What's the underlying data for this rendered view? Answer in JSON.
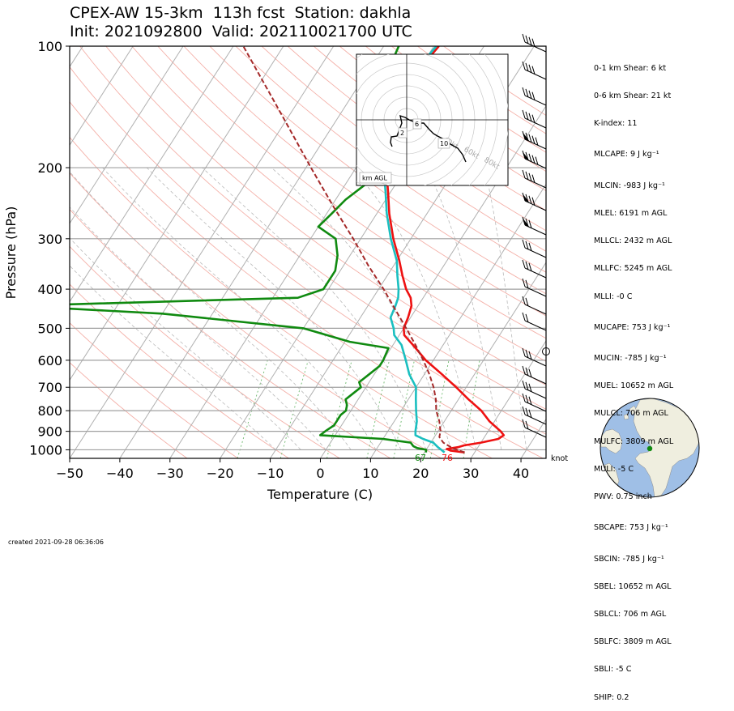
{
  "title_line1": "CPEX-AW 15-3km  113h fcst  Station: dakhla",
  "title_line2": "Init: 2021092800  Valid: 202110021700 UTC",
  "chart_data": {
    "type": "skew-t log-p",
    "xlabel": "Temperature (C)",
    "ylabel": "Pressure (hPa)",
    "xlim": [
      -50,
      45
    ],
    "ylim": [
      1050,
      100
    ],
    "y_log": true,
    "grid": true,
    "x_ticks": [
      -50,
      -40,
      -30,
      -20,
      -10,
      0,
      10,
      20,
      30,
      40
    ],
    "y_ticks": [
      100,
      200,
      300,
      400,
      500,
      600,
      700,
      800,
      900,
      1000
    ],
    "surface_dewpoint_label": "67",
    "surface_temperature_label": "76",
    "wind_units_label": "knot",
    "series": [
      {
        "color": "#ee1111",
        "points": [
          [
            1015,
            28
          ],
          [
            1005,
            25
          ],
          [
            995,
            24
          ],
          [
            985,
            26
          ],
          [
            975,
            27
          ],
          [
            960,
            30
          ],
          [
            940,
            33
          ],
          [
            920,
            33.6
          ],
          [
            900,
            32.5
          ],
          [
            850,
            29
          ],
          [
            800,
            26
          ],
          [
            750,
            22
          ],
          [
            700,
            18
          ],
          [
            650,
            13.5
          ],
          [
            600,
            8.5
          ],
          [
            550,
            4
          ],
          [
            520,
            1
          ],
          [
            500,
            0
          ],
          [
            470,
            -0.5
          ],
          [
            440,
            -1.3
          ],
          [
            420,
            -2.5
          ],
          [
            400,
            -4.5
          ],
          [
            370,
            -7
          ],
          [
            340,
            -9.5
          ],
          [
            300,
            -13.5
          ],
          [
            260,
            -17.5
          ],
          [
            230,
            -20.5
          ],
          [
            200,
            -24
          ],
          [
            180,
            -27
          ],
          [
            165,
            -29
          ],
          [
            155,
            -31
          ],
          [
            145,
            -31.5
          ],
          [
            130,
            -31
          ],
          [
            115,
            -30
          ],
          [
            100,
            -29
          ]
        ]
      },
      {
        "color": "#1bbfc0",
        "points": [
          [
            1015,
            24
          ],
          [
            1000,
            23
          ],
          [
            985,
            22
          ],
          [
            960,
            20.5
          ],
          [
            940,
            18
          ],
          [
            920,
            16
          ],
          [
            900,
            15.5
          ],
          [
            850,
            14.5
          ],
          [
            800,
            13
          ],
          [
            750,
            11.5
          ],
          [
            700,
            10
          ],
          [
            650,
            7
          ],
          [
            600,
            4.5
          ],
          [
            550,
            1.7
          ],
          [
            520,
            -1
          ],
          [
            500,
            -2
          ],
          [
            470,
            -4
          ],
          [
            440,
            -4.5
          ],
          [
            420,
            -5
          ],
          [
            400,
            -6
          ],
          [
            370,
            -8
          ],
          [
            340,
            -10
          ],
          [
            300,
            -14
          ],
          [
            260,
            -18
          ],
          [
            230,
            -21
          ],
          [
            200,
            -24.5
          ],
          [
            180,
            -27.5
          ],
          [
            160,
            -30
          ],
          [
            145,
            -31.5
          ],
          [
            130,
            -31.5
          ],
          [
            115,
            -30.5
          ],
          [
            100,
            -29.5
          ]
        ]
      },
      {
        "color": "#108a10",
        "points": [
          [
            1015,
            20.3
          ],
          [
            1000,
            20
          ],
          [
            990,
            18
          ],
          [
            980,
            17
          ],
          [
            960,
            16
          ],
          [
            940,
            10
          ],
          [
            920,
            -3
          ],
          [
            900,
            -2.5
          ],
          [
            870,
            -1.5
          ],
          [
            850,
            -1.5
          ],
          [
            820,
            -1.5
          ],
          [
            800,
            -1
          ],
          [
            775,
            -1.5
          ],
          [
            750,
            -2.5
          ],
          [
            700,
            -1
          ],
          [
            680,
            -2
          ],
          [
            650,
            -1
          ],
          [
            620,
            0
          ],
          [
            600,
            0
          ],
          [
            560,
            -0.5
          ],
          [
            540,
            -9
          ],
          [
            500,
            -20
          ],
          [
            460,
            -50
          ],
          [
            440,
            -80
          ],
          [
            420,
            -25
          ],
          [
            400,
            -21
          ],
          [
            360,
            -21
          ],
          [
            330,
            -22.5
          ],
          [
            300,
            -25
          ],
          [
            280,
            -30
          ],
          [
            260,
            -29
          ],
          [
            240,
            -28
          ],
          [
            220,
            -26
          ],
          [
            200,
            -28
          ],
          [
            180,
            -30.5
          ],
          [
            160,
            -30.5
          ],
          [
            140,
            -32
          ],
          [
            125,
            -34
          ],
          [
            115,
            -36
          ],
          [
            100,
            -37
          ]
        ]
      },
      {
        "color": "#a52a2a",
        "dashed": true,
        "points": [
          [
            1015,
            28
          ],
          [
            990,
            25
          ],
          [
            960,
            22.5
          ],
          [
            930,
            21
          ],
          [
            900,
            20.5
          ],
          [
            850,
            19
          ],
          [
            800,
            17
          ],
          [
            750,
            15.5
          ],
          [
            700,
            13.5
          ],
          [
            650,
            11
          ],
          [
            600,
            8
          ],
          [
            550,
            4.5
          ],
          [
            500,
            0.5
          ],
          [
            450,
            -4
          ],
          [
            400,
            -9
          ],
          [
            350,
            -15
          ],
          [
            300,
            -21.5
          ],
          [
            250,
            -29.5
          ],
          [
            200,
            -39
          ],
          [
            150,
            -51
          ],
          [
            100,
            -68
          ]
        ]
      }
    ],
    "hodograph_box_label": "km AGL",
    "hodograph_height_labels": [
      "2",
      "6",
      "10"
    ],
    "hodograph_ring_labels": [
      "40kt",
      "60kt",
      "80kt"
    ],
    "globe_station": {
      "lat": 23.7,
      "lon": -15.9,
      "color": "#108a10"
    }
  },
  "indices": [
    "0-1 km Shear: 6 kt",
    "0-6 km Shear: 21 kt",
    "K-index: 11",
    "MLCAPE: 9 J kg⁻¹",
    "MLCIN: -983 J kg⁻¹",
    "MLEL: 6191 m AGL",
    "MLLCL: 2432 m AGL",
    "MLLFC: 5245 m AGL",
    "MLLI: -0 C",
    "MUCAPE: 753 J kg⁻¹",
    "MUCIN: -785 J kg⁻¹",
    "MUEL: 10652 m AGL",
    "MULCL: 706 m AGL",
    "MULFC: 3809 m AGL",
    "MULI: -5 C",
    "PWV: 0.75 inch",
    "SBCAPE: 753 J kg⁻¹",
    "SBCIN: -785 J kg⁻¹",
    "SBEL: 10652 m AGL",
    "SBLCL: 706 m AGL",
    "SBLFC: 3809 m AGL",
    "SBLI: -5 C",
    "SHIP: 0.2"
  ],
  "created": "created 2021-09-28 06:36:06"
}
